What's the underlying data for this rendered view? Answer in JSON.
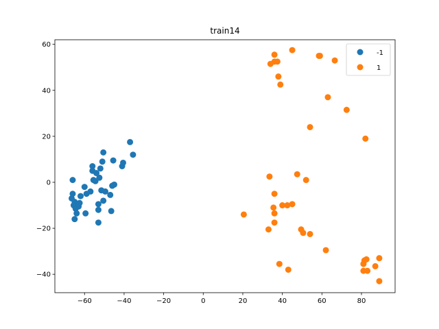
{
  "chart_data": {
    "type": "scatter",
    "title": "train14",
    "xlabel": "",
    "ylabel": "",
    "xlim": [
      -75,
      97
    ],
    "ylim": [
      -48,
      62
    ],
    "xticks": [
      -60,
      -40,
      -20,
      0,
      20,
      40,
      60,
      80
    ],
    "yticks": [
      -40,
      -20,
      0,
      20,
      40,
      60
    ],
    "grid": false,
    "legend_position": "top-right",
    "series": [
      {
        "name": "-1",
        "color": "#1f77b4",
        "points": [
          [
            -66,
            1
          ],
          [
            -66,
            -5
          ],
          [
            -66.5,
            -7
          ],
          [
            -65,
            -8.5
          ],
          [
            -65.5,
            -10
          ],
          [
            -64.5,
            -11.5
          ],
          [
            -65,
            -16
          ],
          [
            -64,
            -13.5
          ],
          [
            -63,
            -10.5
          ],
          [
            -62.5,
            -9
          ],
          [
            -62,
            -6
          ],
          [
            -60,
            -2
          ],
          [
            -59,
            -5
          ],
          [
            -59.5,
            -13.5
          ],
          [
            -57,
            -4
          ],
          [
            -56,
            5
          ],
          [
            -56,
            7
          ],
          [
            -55.5,
            1
          ],
          [
            -54.5,
            0.5
          ],
          [
            -54,
            4
          ],
          [
            -53,
            -9.5
          ],
          [
            -53,
            -12
          ],
          [
            -53,
            -17.5
          ],
          [
            -52.5,
            2
          ],
          [
            -52,
            6
          ],
          [
            -51.5,
            -3.5
          ],
          [
            -51,
            9
          ],
          [
            -50.5,
            13
          ],
          [
            -50.5,
            -8
          ],
          [
            -49.5,
            -4
          ],
          [
            -47,
            -5.5
          ],
          [
            -46.5,
            -12.5
          ],
          [
            -46,
            -1.5
          ],
          [
            -45,
            -1
          ],
          [
            -45.5,
            9.5
          ],
          [
            -41,
            7
          ],
          [
            -40.5,
            8.5
          ],
          [
            -37,
            17.5
          ],
          [
            -35.5,
            12
          ]
        ]
      },
      {
        "name": "1",
        "color": "#ff7f0e",
        "points": [
          [
            36,
            55.5
          ],
          [
            34,
            51.5
          ],
          [
            36,
            52.5
          ],
          [
            37.5,
            52.5
          ],
          [
            38,
            46
          ],
          [
            39,
            42.5
          ],
          [
            45,
            57.5
          ],
          [
            58.5,
            55
          ],
          [
            59,
            55
          ],
          [
            66.5,
            53
          ],
          [
            63,
            37
          ],
          [
            72.5,
            31.5
          ],
          [
            54,
            24
          ],
          [
            82,
            19
          ],
          [
            33.5,
            2.5
          ],
          [
            47.5,
            3.5
          ],
          [
            52,
            1
          ],
          [
            36,
            -5
          ],
          [
            40,
            -10
          ],
          [
            42.5,
            -10
          ],
          [
            45,
            -9.5
          ],
          [
            35.5,
            -11
          ],
          [
            36,
            -13.5
          ],
          [
            36,
            -17.5
          ],
          [
            20.5,
            -14
          ],
          [
            33,
            -20.5
          ],
          [
            49.5,
            -20.5
          ],
          [
            50.5,
            -22
          ],
          [
            54,
            -22.5
          ],
          [
            62,
            -29.5
          ],
          [
            38.5,
            -35.5
          ],
          [
            43,
            -38
          ],
          [
            81,
            -35.5
          ],
          [
            81.5,
            -34
          ],
          [
            82.5,
            -33.5
          ],
          [
            89,
            -33
          ],
          [
            87,
            -36.5
          ],
          [
            81,
            -38.5
          ],
          [
            83,
            -38.5
          ],
          [
            89,
            -43
          ]
        ]
      }
    ]
  }
}
